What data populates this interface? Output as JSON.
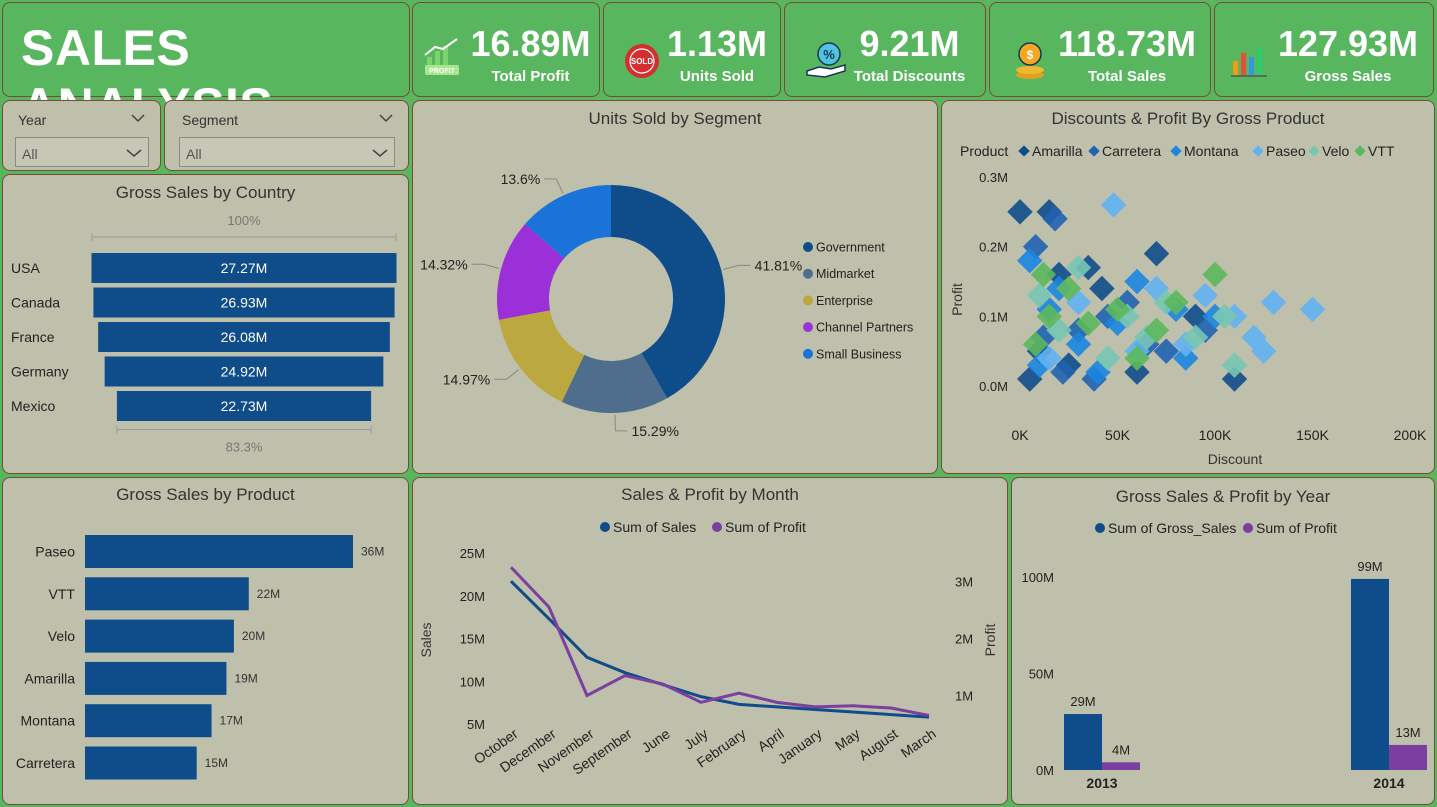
{
  "header": {
    "title": "SALES ANALYSIS"
  },
  "kpis": [
    {
      "value": "16.89M",
      "label": "Total Profit",
      "icon": "profit-chart-icon",
      "icon_text": "PROFIT"
    },
    {
      "value": "1.13M",
      "label": "Units Sold",
      "icon": "sold-badge-icon",
      "icon_text": "SOLD"
    },
    {
      "value": "9.21M",
      "label": "Total Discounts",
      "icon": "discount-hand-icon",
      "icon_text": "%"
    },
    {
      "value": "118.73M",
      "label": "Total Sales",
      "icon": "coins-icon",
      "icon_text": ""
    },
    {
      "value": "127.93M",
      "label": "Gross Sales",
      "icon": "bar-chart-icon",
      "icon_text": ""
    }
  ],
  "slicers": {
    "year": {
      "label": "Year",
      "value": "All"
    },
    "segment": {
      "label": "Segment",
      "value": "All"
    }
  },
  "colors": {
    "navy": "#0f4c8a",
    "purple": "#7b3fa0",
    "background": "#58b65f",
    "panel": "#bfc0ab"
  },
  "chart_data": [
    {
      "id": "country",
      "type": "bar",
      "orientation": "funnel",
      "title": "Gross Sales by Country",
      "categories": [
        "USA",
        "Canada",
        "France",
        "Germany",
        "Mexico"
      ],
      "values": [
        27.27,
        26.93,
        26.08,
        24.92,
        22.73
      ],
      "value_labels": [
        "27.27M",
        "26.93M",
        "26.08M",
        "24.92M",
        "22.73M"
      ],
      "top_label": "100%",
      "bottom_label": "83.3%"
    },
    {
      "id": "segment",
      "type": "pie",
      "title": "Units Sold by Segment",
      "categories": [
        "Government",
        "Midmarket",
        "Enterprise",
        "Channel Partners",
        "Small Business"
      ],
      "values": [
        41.81,
        15.29,
        14.97,
        14.32,
        13.6
      ],
      "value_labels": [
        "41.81%",
        "15.29%",
        "14.97%",
        "14.32%",
        "13.6%"
      ],
      "colors": [
        "#0f4c8a",
        "#4f6e8e",
        "#bba93f",
        "#9b30d8",
        "#1a73d9"
      ]
    },
    {
      "id": "scatter",
      "type": "scatter",
      "title": "Discounts & Profit By Gross Product",
      "legend_title": "Product",
      "xlabel": "Discount",
      "ylabel": "Profit",
      "xticks": [
        "0K",
        "50K",
        "100K",
        "150K",
        "200K"
      ],
      "yticks": [
        "0.0M",
        "0.1M",
        "0.2M",
        "0.3M"
      ],
      "xlim": [
        0,
        200000
      ],
      "ylim": [
        0,
        0.3
      ],
      "series": [
        {
          "name": "Amarilla",
          "color": "#0f4c8a",
          "points": [
            [
              0,
              0.25
            ],
            [
              15000,
              0.25
            ],
            [
              70000,
              0.19
            ],
            [
              20000,
              0.16
            ],
            [
              35000,
              0.17
            ],
            [
              42000,
              0.14
            ],
            [
              10000,
              0.05
            ],
            [
              25000,
              0.03
            ],
            [
              60000,
              0.02
            ],
            [
              5000,
              0.01
            ],
            [
              90000,
              0.1
            ],
            [
              110000,
              0.01
            ]
          ]
        },
        {
          "name": "Carretera",
          "color": "#1f63b3",
          "points": [
            [
              18000,
              0.24
            ],
            [
              8000,
              0.2
            ],
            [
              45000,
              0.1
            ],
            [
              30000,
              0.08
            ],
            [
              55000,
              0.12
            ],
            [
              12000,
              0.07
            ],
            [
              65000,
              0.06
            ],
            [
              22000,
              0.02
            ],
            [
              38000,
              0.01
            ],
            [
              75000,
              0.05
            ],
            [
              95000,
              0.08
            ]
          ]
        },
        {
          "name": "Montana",
          "color": "#1b86e0",
          "points": [
            [
              5000,
              0.18
            ],
            [
              20000,
              0.14
            ],
            [
              50000,
              0.09
            ],
            [
              80000,
              0.11
            ],
            [
              10000,
              0.03
            ],
            [
              30000,
              0.06
            ],
            [
              60000,
              0.15
            ],
            [
              85000,
              0.04
            ],
            [
              40000,
              0.02
            ],
            [
              15000,
              0.11
            ],
            [
              100000,
              0.1
            ]
          ]
        },
        {
          "name": "Paseo",
          "color": "#62b2f2",
          "points": [
            [
              48000,
              0.26
            ],
            [
              130000,
              0.12
            ],
            [
              150000,
              0.11
            ],
            [
              125000,
              0.05
            ],
            [
              110000,
              0.1
            ],
            [
              95000,
              0.13
            ],
            [
              70000,
              0.14
            ],
            [
              30000,
              0.12
            ],
            [
              120000,
              0.07
            ],
            [
              60000,
              0.05
            ],
            [
              15000,
              0.04
            ],
            [
              85000,
              0.06
            ]
          ]
        },
        {
          "name": "Velo",
          "color": "#78c7b2",
          "points": [
            [
              30000,
              0.17
            ],
            [
              55000,
              0.1
            ],
            [
              75000,
              0.12
            ],
            [
              105000,
              0.1
            ],
            [
              110000,
              0.03
            ],
            [
              20000,
              0.08
            ],
            [
              45000,
              0.04
            ],
            [
              65000,
              0.07
            ],
            [
              90000,
              0.07
            ],
            [
              10000,
              0.13
            ]
          ]
        },
        {
          "name": "VTT",
          "color": "#5cb85c",
          "points": [
            [
              100000,
              0.16
            ],
            [
              12000,
              0.16
            ],
            [
              25000,
              0.14
            ],
            [
              50000,
              0.11
            ],
            [
              35000,
              0.09
            ],
            [
              70000,
              0.08
            ],
            [
              15000,
              0.1
            ],
            [
              80000,
              0.12
            ],
            [
              8000,
              0.06
            ],
            [
              60000,
              0.04
            ]
          ]
        }
      ]
    },
    {
      "id": "product",
      "type": "bar",
      "orientation": "horizontal",
      "title": "Gross Sales by Product",
      "categories": [
        "Paseo",
        "VTT",
        "Velo",
        "Amarilla",
        "Montana",
        "Carretera"
      ],
      "values": [
        36,
        22,
        20,
        19,
        17,
        15
      ],
      "value_labels": [
        "36M",
        "22M",
        "20M",
        "19M",
        "17M",
        "15M"
      ]
    },
    {
      "id": "month",
      "type": "line",
      "title": "Sales & Profit by Month",
      "xlabel": "",
      "ylabel": "Sales",
      "y2label": "Profit",
      "categories": [
        "October",
        "December",
        "November",
        "September",
        "June",
        "July",
        "February",
        "April",
        "January",
        "May",
        "August",
        "March"
      ],
      "yticks": [
        "25M",
        "20M",
        "15M",
        "10M",
        "5M"
      ],
      "y2ticks": [
        "3M",
        "2M",
        "1M"
      ],
      "ylim": [
        5,
        25
      ],
      "y2lim": [
        0.5,
        3.5
      ],
      "series": [
        {
          "name": "Sum of  Sales",
          "color": "#0f4c8a",
          "axis": "left",
          "values": [
            21.7,
            17.3,
            12.8,
            11.0,
            9.6,
            8.2,
            7.3,
            7.0,
            6.7,
            6.4,
            6.1,
            5.8
          ]
        },
        {
          "name": "Sum of Profit",
          "color": "#7b3fa0",
          "axis": "right",
          "values": [
            3.25,
            2.55,
            1.0,
            1.35,
            1.2,
            0.88,
            1.04,
            0.88,
            0.8,
            0.82,
            0.78,
            0.65
          ]
        }
      ]
    },
    {
      "id": "year",
      "type": "bar",
      "orientation": "vertical",
      "title": "Gross Sales & Profit by Year",
      "categories": [
        "2013",
        "2014"
      ],
      "yticks": [
        "100M",
        "50M",
        "0M"
      ],
      "ylim": [
        0,
        100
      ],
      "series": [
        {
          "name": "Sum of Gross_Sales",
          "color": "#0f4c8a",
          "values": [
            29,
            99
          ],
          "value_labels": [
            "29M",
            "99M"
          ]
        },
        {
          "name": "Sum of Profit",
          "color": "#7b3fa0",
          "values": [
            4,
            13
          ],
          "value_labels": [
            "4M",
            "13M"
          ]
        }
      ]
    }
  ]
}
